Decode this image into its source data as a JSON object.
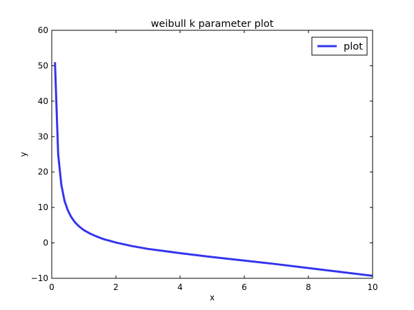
{
  "chart_data": {
    "type": "line",
    "title": "weibull k parameter plot",
    "xlabel": "x",
    "ylabel": "y",
    "xlim": [
      0,
      10
    ],
    "ylim": [
      -10,
      60
    ],
    "xticks": [
      0,
      2,
      4,
      6,
      8,
      10
    ],
    "yticks": [
      -10,
      0,
      10,
      20,
      30,
      40,
      50,
      60
    ],
    "grid": false,
    "legend": "top-right",
    "series": [
      {
        "name": "plot",
        "color": "#3333ee",
        "x": [
          0.1,
          0.2,
          0.3,
          0.4,
          0.5,
          0.6,
          0.7,
          0.8,
          0.9,
          1.0,
          1.2,
          1.4,
          1.6,
          1.8,
          2.0,
          2.5,
          3.0,
          3.5,
          4.0,
          5.0,
          6.0,
          7.0,
          8.0,
          9.0,
          10.0
        ],
        "y": [
          51,
          25,
          16.3,
          11.8,
          9.2,
          7.4,
          6.1,
          5.1,
          4.3,
          3.6,
          2.6,
          1.8,
          1.1,
          0.6,
          0.1,
          -0.9,
          -1.7,
          -2.3,
          -2.9,
          -4.0,
          -5.0,
          -6.0,
          -7.1,
          -8.2,
          -9.3
        ]
      }
    ]
  }
}
